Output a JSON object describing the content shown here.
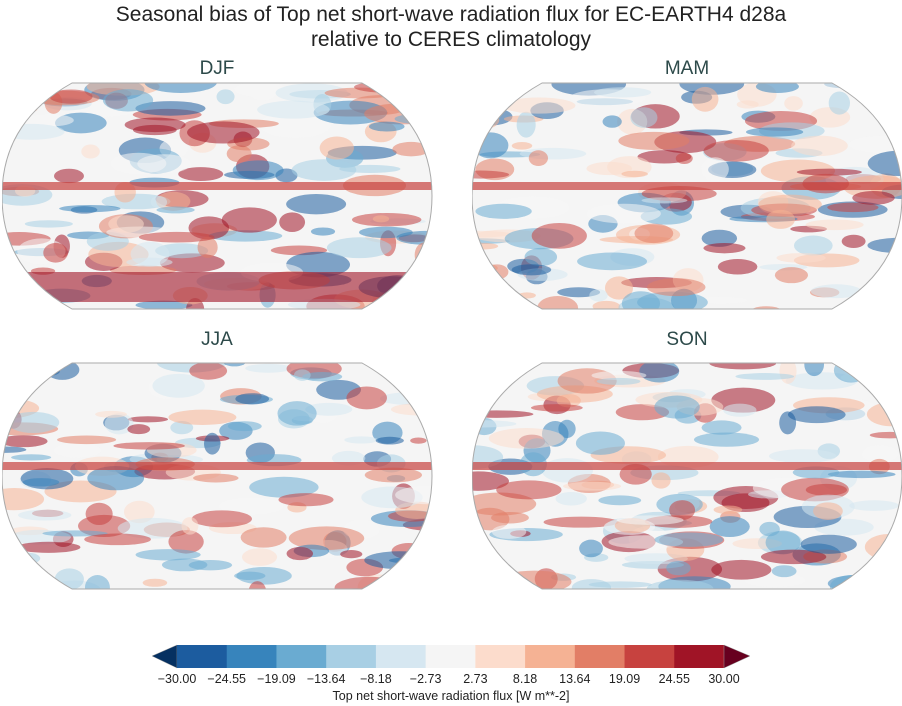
{
  "title_line1": "Seasonal bias of Top net short-wave radiation flux for EC-EARTH4 d28a",
  "title_line2": "relative to CERES climatology",
  "panels": [
    {
      "label": "DJF"
    },
    {
      "label": "MAM"
    },
    {
      "label": "JJA"
    },
    {
      "label": "SON"
    }
  ],
  "colorbar": {
    "label": "Top net short-wave radiation flux [W m**-2]",
    "ticks": [
      "−30.00",
      "−24.55",
      "−19.09",
      "−13.64",
      "−8.18",
      "−2.73",
      "2.73",
      "8.18",
      "13.64",
      "19.09",
      "24.55",
      "30.00"
    ],
    "colors": [
      "#1c5c9f",
      "#3784bc",
      "#6aabd1",
      "#a8cfe4",
      "#d6e7f1",
      "#f5f5f5",
      "#fcdccc",
      "#f5b294",
      "#e27e66",
      "#c7423f",
      "#a01426"
    ],
    "under_color": "#053061",
    "over_color": "#67001f",
    "extend": "both"
  }
}
